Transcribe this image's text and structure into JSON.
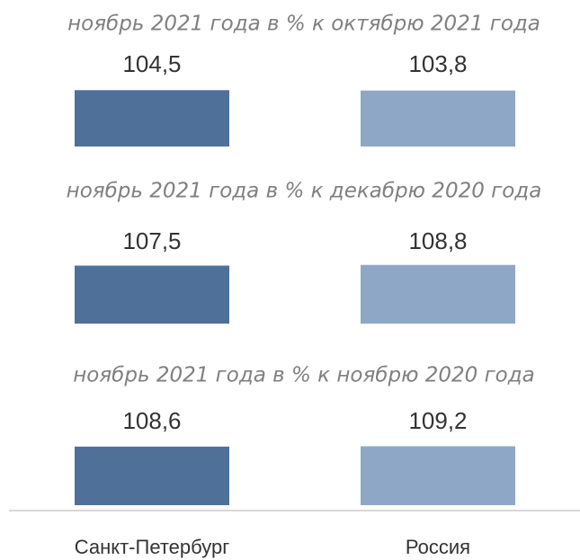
{
  "chart_data": {
    "type": "bar",
    "categories": [
      "Санкт-Петербург",
      "Россия"
    ],
    "colors": [
      "#4f7199",
      "#8fa7c7"
    ],
    "ylim": [
      0,
      110
    ],
    "panels": [
      {
        "title": "ноябрь 2021 года в % к октябрю 2021 года",
        "values": [
          104.5,
          103.8
        ],
        "value_labels": [
          "104,5",
          "103,8"
        ]
      },
      {
        "title": "ноябрь 2021 года в % к декабрю 2020 года",
        "values": [
          107.5,
          108.8
        ],
        "value_labels": [
          "107,5",
          "108,8"
        ]
      },
      {
        "title": "ноябрь 2021 года в % к ноябрю 2020 года",
        "values": [
          108.6,
          109.2
        ],
        "value_labels": [
          "108,6",
          "109,2"
        ]
      }
    ]
  }
}
